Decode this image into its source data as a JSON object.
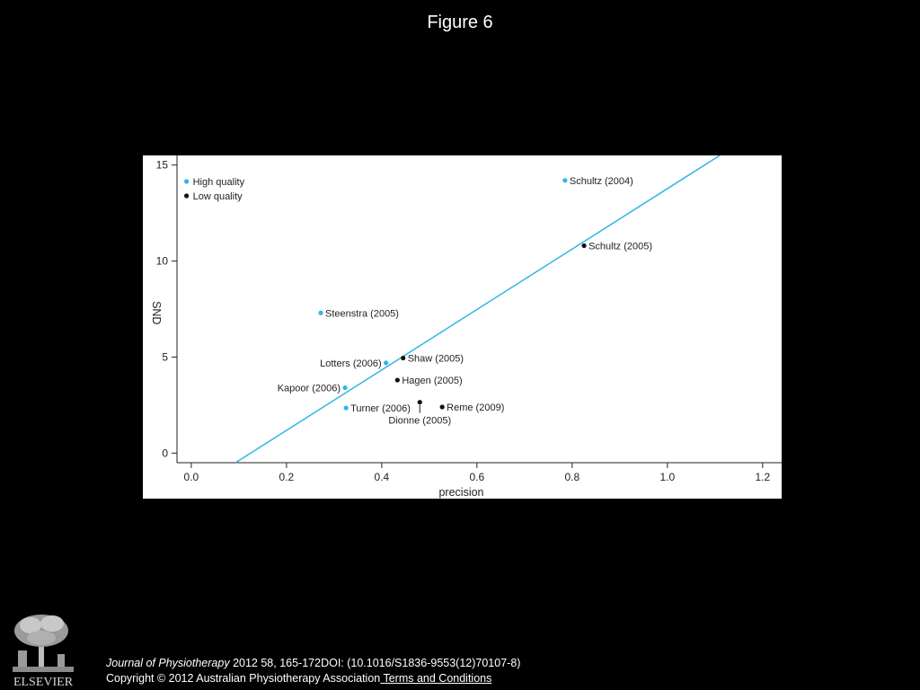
{
  "slide": {
    "title": "Figure 6"
  },
  "citation": {
    "journal": "Journal of Physiotherapy",
    "details": " 2012 58, 165-172DOI: (10.1016/S1836-9553(12)70107-8)",
    "copyright": "Copyright © 2012 Australian Physiotherapy Association",
    "terms_link": " Terms and Conditions"
  },
  "logo": {
    "text": "ELSEVIER"
  },
  "colors": {
    "background": "#000000",
    "plot_background": "#ffffff",
    "high_quality": "#33b5e5",
    "low_quality": "#111111",
    "regression_line": "#33b5e5"
  },
  "chart_data": {
    "type": "scatter",
    "xlabel": "precision",
    "ylabel": "SND",
    "xlim": [
      -0.03,
      1.24
    ],
    "ylim": [
      -0.5,
      15.5
    ],
    "xticks": [
      "0.0",
      "0.2",
      "0.4",
      "0.6",
      "0.8",
      "1.0",
      "1.2"
    ],
    "xtick_values": [
      0,
      0.2,
      0.4,
      0.6,
      0.8,
      1.0,
      1.2
    ],
    "yticks": [
      "0",
      "5",
      "10",
      "15"
    ],
    "ytick_values": [
      0,
      5,
      10,
      15
    ],
    "legend_position": "top-left",
    "series": [
      {
        "name": "High quality",
        "color": "#33b5e5",
        "points": [
          {
            "label": "Schultz (2004)",
            "x": 0.785,
            "y": 14.2,
            "label_side": "right"
          },
          {
            "label": "Steenstra (2005)",
            "x": 0.272,
            "y": 7.3,
            "label_side": "right"
          },
          {
            "label": "Lotters (2006)",
            "x": 0.409,
            "y": 4.7,
            "label_side": "left"
          },
          {
            "label": "Kapoor (2006)",
            "x": 0.323,
            "y": 3.4,
            "label_side": "left"
          },
          {
            "label": "Turner (2006)",
            "x": 0.325,
            "y": 2.35,
            "label_side": "right"
          }
        ]
      },
      {
        "name": "Low quality",
        "color": "#111111",
        "points": [
          {
            "label": "Schultz (2005)",
            "x": 0.825,
            "y": 10.8,
            "label_side": "right"
          },
          {
            "label": "Shaw (2005)",
            "x": 0.445,
            "y": 4.95,
            "label_side": "right"
          },
          {
            "label": "Hagen (2005)",
            "x": 0.433,
            "y": 3.8,
            "label_side": "right"
          },
          {
            "label": "Dionne (2005)",
            "x": 0.48,
            "y": 2.65,
            "label_side": "below"
          },
          {
            "label": "Reme (2009)",
            "x": 0.527,
            "y": 2.4,
            "label_side": "right"
          }
        ]
      }
    ],
    "regression_line": {
      "color": "#33b5e5",
      "points": [
        [
          0.093,
          -0.5
        ],
        [
          1.11,
          15.5
        ]
      ]
    }
  }
}
